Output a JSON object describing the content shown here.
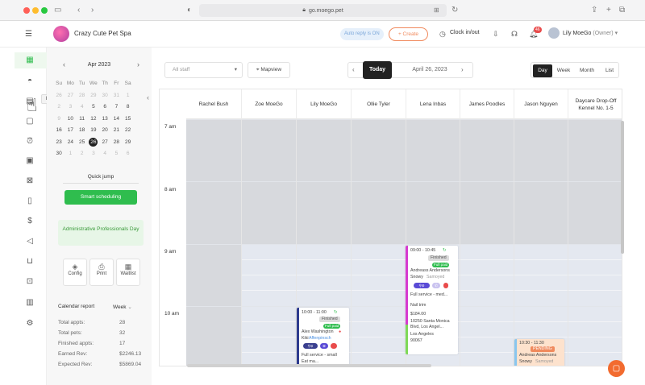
{
  "browser": {
    "url": "go.moego.pet",
    "colors": {
      "close": "#ff5f57",
      "minimize": "#febc2e",
      "maximize": "#28c840"
    }
  },
  "header": {
    "business_name": "Crazy Cute Pet Spa",
    "auto_reply": "Auto reply is ON",
    "create_label": "+ Create",
    "clock_label": "Clock in/out",
    "notification_count": "46",
    "user_name": "Lily MoeGo",
    "user_role": "(Owner)"
  },
  "nav": {
    "tooltip": "Retail"
  },
  "mini_calendar": {
    "month_label": "Apr 2023",
    "weekdays": [
      "Su",
      "Mo",
      "Tu",
      "We",
      "Th",
      "Fr",
      "Sa"
    ],
    "weeks": [
      [
        "26",
        "27",
        "28",
        "29",
        "30",
        "31",
        "1"
      ],
      [
        "2",
        "3",
        "4",
        "5",
        "6",
        "7",
        "8"
      ],
      [
        "9",
        "10",
        "11",
        "12",
        "13",
        "14",
        "15"
      ],
      [
        "16",
        "17",
        "18",
        "19",
        "20",
        "21",
        "22"
      ],
      [
        "23",
        "24",
        "25",
        "26",
        "27",
        "28",
        "29"
      ],
      [
        "30",
        "1",
        "2",
        "3",
        "4",
        "5",
        "6"
      ]
    ],
    "selected_day": "26"
  },
  "panel": {
    "quick_jump": "Quick jump",
    "smart_scheduling": "Smart scheduling",
    "holiday": "Administrative Professionals Day",
    "tools": [
      "Config",
      "Print",
      "Waitlist"
    ],
    "report_title": "Calendar report",
    "report_range": "Week",
    "report_rows": [
      {
        "label": "Total appts:",
        "value": "28"
      },
      {
        "label": "Total pets:",
        "value": "32"
      },
      {
        "label": "Finished appts:",
        "value": "17"
      },
      {
        "label": "Earned Rev:",
        "value": "$2246.13"
      },
      {
        "label": "Expected Rev:",
        "value": "$5869.04"
      }
    ]
  },
  "toolbar": {
    "staff_placeholder": "All staff",
    "mapview": "Mapview",
    "today": "Today",
    "date": "April 26, 2023",
    "views": [
      "Day",
      "Week",
      "Month",
      "List"
    ],
    "active_view": "Day"
  },
  "calendar": {
    "columns": [
      "Rachel Bush",
      "Zoe MoeGo",
      "Lily MoeGo",
      "Ollie Tyler",
      "Lena Inbas",
      "James Poodles",
      "Jason Nguyen",
      "Daycare Drop-Off Kennel No. 1-5"
    ],
    "hours": [
      "7 am",
      "8 am",
      "9 am",
      "10 am"
    ],
    "appointments": [
      {
        "time": "09:00 - 10:45",
        "status": "Finished",
        "paid": "Full paid",
        "client": "Andreass Andersons",
        "pet": "Snowy",
        "breed": "Samoyed",
        "service": "Full service - med...",
        "addon": "Nail trim",
        "price": "$184.00",
        "address1": "10250 Santa Monica",
        "address2": "Blvd, Los Angel...",
        "city": "Los Angeles",
        "zip": "90067",
        "color": "#d63ad0"
      },
      {
        "time": "10:00 - 11:00",
        "status": "Finished",
        "paid": "Full paid",
        "client": "Alex Washington",
        "pet": "Kiki",
        "breed": "Affenpinsch",
        "service": "Full service - small",
        "extra": "Eat ma...",
        "color": "#2d3b8f"
      },
      {
        "time": "10:30 - 11:30",
        "status": "PENDING",
        "client": "Andreas Andersons",
        "pet": "Snowy",
        "breed": "Samoyed",
        "color": "#89c6ef"
      }
    ]
  }
}
